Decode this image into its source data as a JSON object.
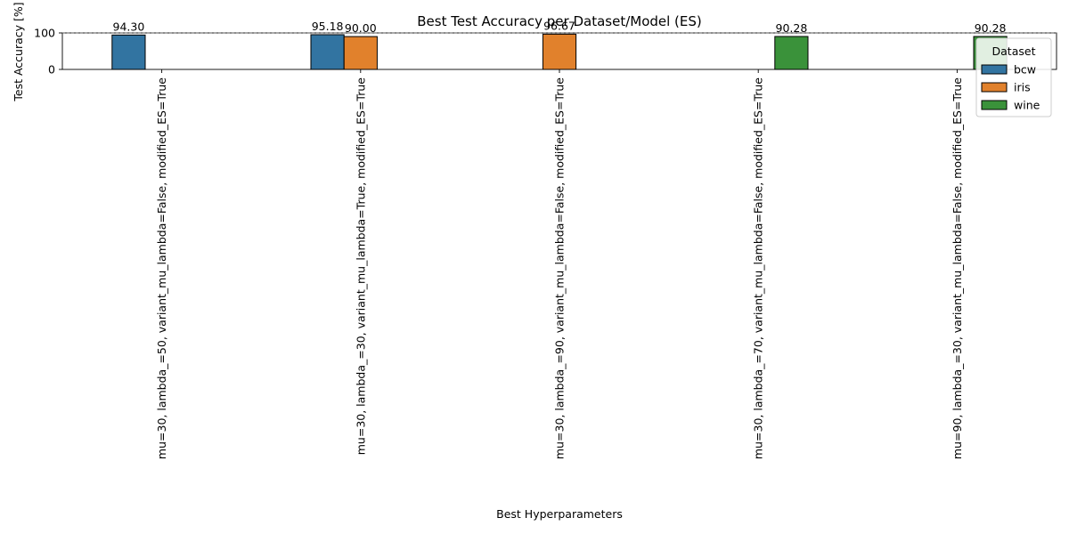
{
  "chart_data": {
    "type": "bar",
    "title": "Best Test Accuracy per Dataset/Model (ES)",
    "xlabel": "Best Hyperparameters",
    "ylabel": "Test Accuracy [%]",
    "ylim": [
      0,
      100
    ],
    "yticks": [
      0,
      100
    ],
    "grid": false,
    "reference_line": 100,
    "categories": [
      "mu=30, lambda_=50, variant_mu_lambda=False, modified_ES=True",
      "mu=30, lambda_=30, variant_mu_lambda=True, modified_ES=True",
      "mu=30, lambda_=90, variant_mu_lambda=False, modified_ES=True",
      "mu=30, lambda_=70, variant_mu_lambda=False, modified_ES=True",
      "mu=90, lambda_=30, variant_mu_lambda=False, modified_ES=True"
    ],
    "series": [
      {
        "name": "bcw",
        "color": "#3274a1",
        "values": [
          94.3,
          95.18,
          null,
          null,
          null
        ]
      },
      {
        "name": "iris",
        "color": "#e1812c",
        "values": [
          null,
          90.0,
          96.67,
          null,
          null
        ]
      },
      {
        "name": "wine",
        "color": "#3a923a",
        "values": [
          null,
          null,
          null,
          90.28,
          90.28
        ]
      }
    ],
    "data_labels": [
      "94.30",
      "95.18",
      "90.00",
      "96.67",
      "90.28",
      "90.28"
    ],
    "legend": {
      "title": "Dataset",
      "placement": "upper-right"
    }
  }
}
